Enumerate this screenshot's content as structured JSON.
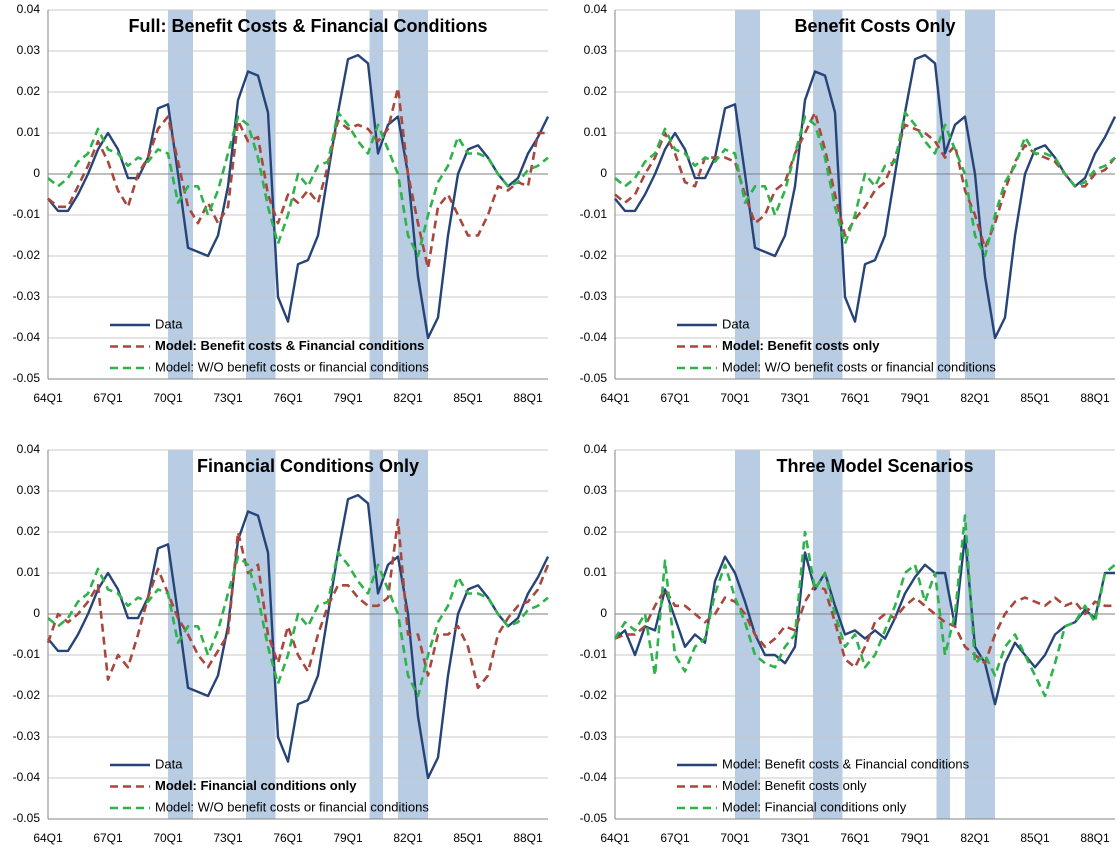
{
  "chart_data": [
    {
      "type": "line",
      "title": "Full: Benefit Costs & Financial Conditions",
      "categories": [
        "64Q1",
        null,
        null,
        null,
        null,
        null,
        "67Q1",
        null,
        null,
        null,
        null,
        null,
        "70Q1",
        null,
        null,
        null,
        null,
        null,
        "73Q1",
        null,
        null,
        null,
        null,
        null,
        "76Q1",
        null,
        null,
        null,
        null,
        null,
        "79Q1",
        null,
        null,
        null,
        null,
        null,
        "82Q1",
        null,
        null,
        null,
        null,
        null,
        "85Q1",
        null,
        null,
        null,
        null,
        null,
        "88Q1",
        null,
        null
      ],
      "series": [
        {
          "name": "Data",
          "color": "#264478",
          "line_style": "solid",
          "values": [
            -0.006,
            -0.009,
            -0.009,
            -0.005,
            0.0,
            0.006,
            0.01,
            0.006,
            -0.001,
            -0.001,
            0.004,
            0.016,
            0.017,
            0.0,
            -0.018,
            -0.019,
            -0.02,
            -0.015,
            -0.003,
            0.018,
            0.025,
            0.024,
            0.015,
            -0.03,
            -0.036,
            -0.022,
            -0.021,
            -0.015,
            0.0,
            0.015,
            0.028,
            0.029,
            0.027,
            0.005,
            0.012,
            0.014,
            0.0,
            -0.025,
            -0.04,
            -0.035,
            -0.015,
            0.0,
            0.006,
            0.007,
            0.004,
            0.0,
            -0.003,
            -0.001,
            0.005,
            0.009,
            0.014
          ]
        },
        {
          "name": "Model: Benefit costs & Financial conditions",
          "color": "#a9473c",
          "line_style": "dashed",
          "values": [
            -0.006,
            -0.008,
            -0.008,
            -0.003,
            0.002,
            0.008,
            0.003,
            -0.004,
            -0.008,
            0.0,
            0.004,
            0.011,
            0.014,
            0.003,
            -0.008,
            -0.012,
            -0.007,
            -0.012,
            -0.008,
            0.013,
            0.008,
            0.009,
            -0.005,
            -0.012,
            -0.005,
            -0.007,
            -0.004,
            -0.007,
            0.002,
            0.013,
            0.011,
            0.012,
            0.011,
            0.008,
            0.011,
            0.021,
            0.0,
            -0.012,
            -0.023,
            -0.008,
            -0.005,
            -0.01,
            -0.015,
            -0.015,
            -0.01,
            -0.003,
            -0.004,
            -0.002,
            -0.003,
            0.01,
            0.01
          ]
        },
        {
          "name": "Model: W/O benefit costs or financial conditions",
          "color": "#2db34a",
          "line_style": "dashed",
          "values": [
            -0.001,
            -0.003,
            -0.001,
            0.003,
            0.005,
            0.011,
            0.006,
            0.005,
            0.002,
            0.004,
            0.003,
            0.006,
            0.005,
            -0.007,
            -0.003,
            -0.003,
            -0.01,
            -0.004,
            0.005,
            0.014,
            0.012,
            0.004,
            -0.008,
            -0.017,
            -0.01,
            0.0,
            -0.003,
            0.002,
            0.003,
            0.015,
            0.012,
            0.008,
            0.005,
            0.012,
            0.006,
            0.0,
            -0.015,
            -0.02,
            -0.01,
            -0.002,
            0.002,
            0.009,
            0.005,
            0.005,
            0.004,
            0.0,
            -0.003,
            -0.002,
            0.001,
            0.002,
            0.004
          ]
        }
      ],
      "ylim": [
        -0.05,
        0.04
      ],
      "yticks": [
        0.04,
        0.03,
        0.02,
        0.01,
        0,
        -0.01,
        -0.02,
        -0.03,
        -0.04,
        -0.05
      ],
      "grid": true
    },
    {
      "type": "line",
      "title": "Benefit Costs Only",
      "categories": [
        "64Q1",
        null,
        null,
        null,
        null,
        null,
        "67Q1",
        null,
        null,
        null,
        null,
        null,
        "70Q1",
        null,
        null,
        null,
        null,
        null,
        "73Q1",
        null,
        null,
        null,
        null,
        null,
        "76Q1",
        null,
        null,
        null,
        null,
        null,
        "79Q1",
        null,
        null,
        null,
        null,
        null,
        "82Q1",
        null,
        null,
        null,
        null,
        null,
        "85Q1",
        null,
        null,
        null,
        null,
        null,
        "88Q1",
        null,
        null
      ],
      "series": [
        {
          "name": "Data",
          "color": "#264478",
          "line_style": "solid",
          "values": [
            -0.006,
            -0.009,
            -0.009,
            -0.005,
            0.0,
            0.006,
            0.01,
            0.006,
            -0.001,
            -0.001,
            0.004,
            0.016,
            0.017,
            0.0,
            -0.018,
            -0.019,
            -0.02,
            -0.015,
            -0.003,
            0.018,
            0.025,
            0.024,
            0.015,
            -0.03,
            -0.036,
            -0.022,
            -0.021,
            -0.015,
            0.0,
            0.015,
            0.028,
            0.029,
            0.027,
            0.005,
            0.012,
            0.014,
            0.0,
            -0.025,
            -0.04,
            -0.035,
            -0.015,
            0.0,
            0.006,
            0.007,
            0.004,
            0.0,
            -0.003,
            -0.001,
            0.005,
            0.009,
            0.014
          ]
        },
        {
          "name": "Model: Benefit costs only",
          "color": "#a9473c",
          "line_style": "dashed",
          "values": [
            -0.005,
            -0.007,
            -0.005,
            0.0,
            0.004,
            0.01,
            0.005,
            -0.002,
            -0.003,
            0.004,
            0.004,
            0.004,
            0.003,
            -0.005,
            -0.012,
            -0.01,
            -0.004,
            -0.002,
            0.005,
            0.01,
            0.015,
            0.006,
            -0.005,
            -0.015,
            -0.011,
            -0.008,
            -0.004,
            -0.002,
            0.004,
            0.012,
            0.011,
            0.01,
            0.008,
            0.004,
            0.007,
            -0.004,
            -0.01,
            -0.018,
            -0.012,
            -0.004,
            0.003,
            0.007,
            0.005,
            0.004,
            0.003,
            0.0,
            -0.003,
            -0.003,
            0.0,
            0.001,
            0.004
          ]
        },
        {
          "name": "Model: W/O benefit costs or financial conditions",
          "color": "#2db34a",
          "line_style": "dashed",
          "values": [
            -0.001,
            -0.003,
            -0.001,
            0.003,
            0.005,
            0.011,
            0.006,
            0.005,
            0.002,
            0.004,
            0.003,
            0.006,
            0.005,
            -0.007,
            -0.003,
            -0.003,
            -0.01,
            -0.004,
            0.005,
            0.014,
            0.012,
            0.004,
            -0.008,
            -0.017,
            -0.01,
            0.0,
            -0.003,
            0.002,
            0.003,
            0.015,
            0.012,
            0.008,
            0.005,
            0.012,
            0.006,
            0.0,
            -0.015,
            -0.02,
            -0.01,
            -0.002,
            0.002,
            0.009,
            0.005,
            0.005,
            0.004,
            0.0,
            -0.003,
            -0.002,
            0.001,
            0.002,
            0.004
          ]
        }
      ],
      "ylim": [
        -0.05,
        0.04
      ],
      "yticks": [
        0.04,
        0.03,
        0.02,
        0.01,
        0,
        -0.01,
        -0.02,
        -0.03,
        -0.04,
        -0.05
      ],
      "grid": true
    },
    {
      "type": "line",
      "title": "Financial Conditions Only",
      "categories": [
        "64Q1",
        null,
        null,
        null,
        null,
        null,
        "67Q1",
        null,
        null,
        null,
        null,
        null,
        "70Q1",
        null,
        null,
        null,
        null,
        null,
        "73Q1",
        null,
        null,
        null,
        null,
        null,
        "76Q1",
        null,
        null,
        null,
        null,
        null,
        "79Q1",
        null,
        null,
        null,
        null,
        null,
        "82Q1",
        null,
        null,
        null,
        null,
        null,
        "85Q1",
        null,
        null,
        null,
        null,
        null,
        "88Q1",
        null,
        null
      ],
      "series": [
        {
          "name": "Data",
          "color": "#264478",
          "line_style": "solid",
          "values": [
            -0.006,
            -0.009,
            -0.009,
            -0.005,
            0.0,
            0.006,
            0.01,
            0.006,
            -0.001,
            -0.001,
            0.004,
            0.016,
            0.017,
            0.0,
            -0.018,
            -0.019,
            -0.02,
            -0.015,
            -0.003,
            0.018,
            0.025,
            0.024,
            0.015,
            -0.03,
            -0.036,
            -0.022,
            -0.021,
            -0.015,
            0.0,
            0.015,
            0.028,
            0.029,
            0.027,
            0.005,
            0.012,
            0.014,
            0.0,
            -0.025,
            -0.04,
            -0.035,
            -0.015,
            0.0,
            0.006,
            0.007,
            0.004,
            0.0,
            -0.003,
            -0.001,
            0.005,
            0.009,
            0.014
          ]
        },
        {
          "name": "Model: Financial conditions only",
          "color": "#a9473c",
          "line_style": "dashed",
          "values": [
            -0.007,
            0.0,
            -0.002,
            0.0,
            0.003,
            0.007,
            -0.016,
            -0.01,
            -0.013,
            -0.005,
            0.004,
            0.011,
            0.005,
            -0.001,
            -0.005,
            -0.01,
            -0.013,
            -0.009,
            -0.005,
            0.02,
            0.01,
            0.012,
            -0.005,
            -0.012,
            -0.003,
            -0.01,
            -0.014,
            -0.005,
            0.002,
            0.007,
            0.007,
            0.004,
            0.002,
            0.002,
            0.004,
            0.023,
            -0.005,
            -0.005,
            -0.015,
            -0.005,
            -0.005,
            -0.003,
            -0.008,
            -0.018,
            -0.015,
            -0.005,
            -0.001,
            0.002,
            0.003,
            0.006,
            0.012
          ]
        },
        {
          "name": "Model: W/O benefit costs or financial conditions",
          "color": "#2db34a",
          "line_style": "dashed",
          "values": [
            -0.001,
            -0.003,
            -0.001,
            0.003,
            0.005,
            0.011,
            0.006,
            0.005,
            0.002,
            0.004,
            0.003,
            0.006,
            0.005,
            -0.007,
            -0.003,
            -0.003,
            -0.01,
            -0.004,
            0.005,
            0.014,
            0.012,
            0.004,
            -0.008,
            -0.017,
            -0.01,
            0.0,
            -0.003,
            0.002,
            0.003,
            0.015,
            0.012,
            0.008,
            0.005,
            0.012,
            0.006,
            0.0,
            -0.015,
            -0.02,
            -0.01,
            -0.002,
            0.002,
            0.009,
            0.005,
            0.005,
            0.004,
            0.0,
            -0.003,
            -0.002,
            0.001,
            0.002,
            0.004
          ]
        }
      ],
      "ylim": [
        -0.05,
        0.04
      ],
      "yticks": [
        0.04,
        0.03,
        0.02,
        0.01,
        0,
        -0.01,
        -0.02,
        -0.03,
        -0.04,
        -0.05
      ],
      "grid": true
    },
    {
      "type": "line",
      "title": "Three Model Scenarios",
      "categories": [
        "64Q1",
        null,
        null,
        null,
        null,
        null,
        "67Q1",
        null,
        null,
        null,
        null,
        null,
        "70Q1",
        null,
        null,
        null,
        null,
        null,
        "73Q1",
        null,
        null,
        null,
        null,
        null,
        "76Q1",
        null,
        null,
        null,
        null,
        null,
        "79Q1",
        null,
        null,
        null,
        null,
        null,
        "82Q1",
        null,
        null,
        null,
        null,
        null,
        "85Q1",
        null,
        null,
        null,
        null,
        null,
        "88Q1",
        null,
        null
      ],
      "series": [
        {
          "name": "Model: Benefit costs & Financial conditions",
          "color": "#264478",
          "line_style": "solid",
          "values": [
            -0.006,
            -0.004,
            -0.01,
            -0.003,
            -0.004,
            0.006,
            -0.001,
            -0.008,
            -0.005,
            -0.007,
            0.008,
            0.014,
            0.01,
            0.003,
            -0.005,
            -0.01,
            -0.01,
            -0.012,
            -0.008,
            0.015,
            0.006,
            0.01,
            0.002,
            -0.005,
            -0.004,
            -0.006,
            -0.004,
            -0.006,
            -0.001,
            0.005,
            0.009,
            0.012,
            0.01,
            0.01,
            -0.003,
            0.019,
            -0.008,
            -0.012,
            -0.022,
            -0.012,
            -0.007,
            -0.01,
            -0.013,
            -0.01,
            -0.005,
            -0.003,
            -0.002,
            0.001,
            -0.001,
            0.01,
            0.01
          ]
        },
        {
          "name": "Model: Benefit costs only",
          "color": "#a9473c",
          "line_style": "dashed",
          "values": [
            -0.006,
            -0.005,
            -0.005,
            -0.003,
            0.002,
            0.006,
            0.002,
            0.002,
            0.0,
            -0.002,
            0.0,
            0.004,
            0.003,
            0.0,
            -0.005,
            -0.008,
            -0.006,
            -0.003,
            -0.004,
            0.003,
            0.007,
            0.006,
            -0.002,
            -0.011,
            -0.013,
            -0.008,
            -0.002,
            0.0,
            -0.001,
            0.002,
            0.004,
            0.002,
            0.0,
            -0.002,
            -0.003,
            -0.008,
            -0.01,
            -0.012,
            -0.005,
            0.0,
            0.003,
            0.004,
            0.003,
            0.002,
            0.004,
            0.002,
            0.003,
            0.0,
            0.003,
            0.002,
            0.002
          ]
        },
        {
          "name": "Model: Financial conditions only",
          "color": "#2db34a",
          "line_style": "dashed",
          "values": [
            -0.006,
            -0.002,
            -0.004,
            0.0,
            -0.015,
            0.013,
            -0.01,
            -0.014,
            -0.008,
            -0.006,
            0.005,
            0.012,
            0.004,
            -0.002,
            -0.01,
            -0.012,
            -0.013,
            -0.008,
            -0.005,
            0.02,
            0.006,
            0.01,
            0.0,
            -0.008,
            -0.005,
            -0.013,
            -0.01,
            -0.004,
            0.002,
            0.01,
            0.012,
            0.003,
            0.01,
            -0.01,
            0.0,
            0.024,
            -0.012,
            -0.01,
            -0.015,
            -0.008,
            -0.005,
            -0.01,
            -0.015,
            -0.02,
            -0.012,
            -0.003,
            -0.002,
            0.002,
            -0.002,
            0.01,
            0.012
          ]
        }
      ],
      "ylim": [
        -0.05,
        0.04
      ],
      "yticks": [
        0.04,
        0.03,
        0.02,
        0.01,
        0,
        -0.01,
        -0.02,
        -0.03,
        -0.04,
        -0.05
      ],
      "grid": true
    }
  ]
}
